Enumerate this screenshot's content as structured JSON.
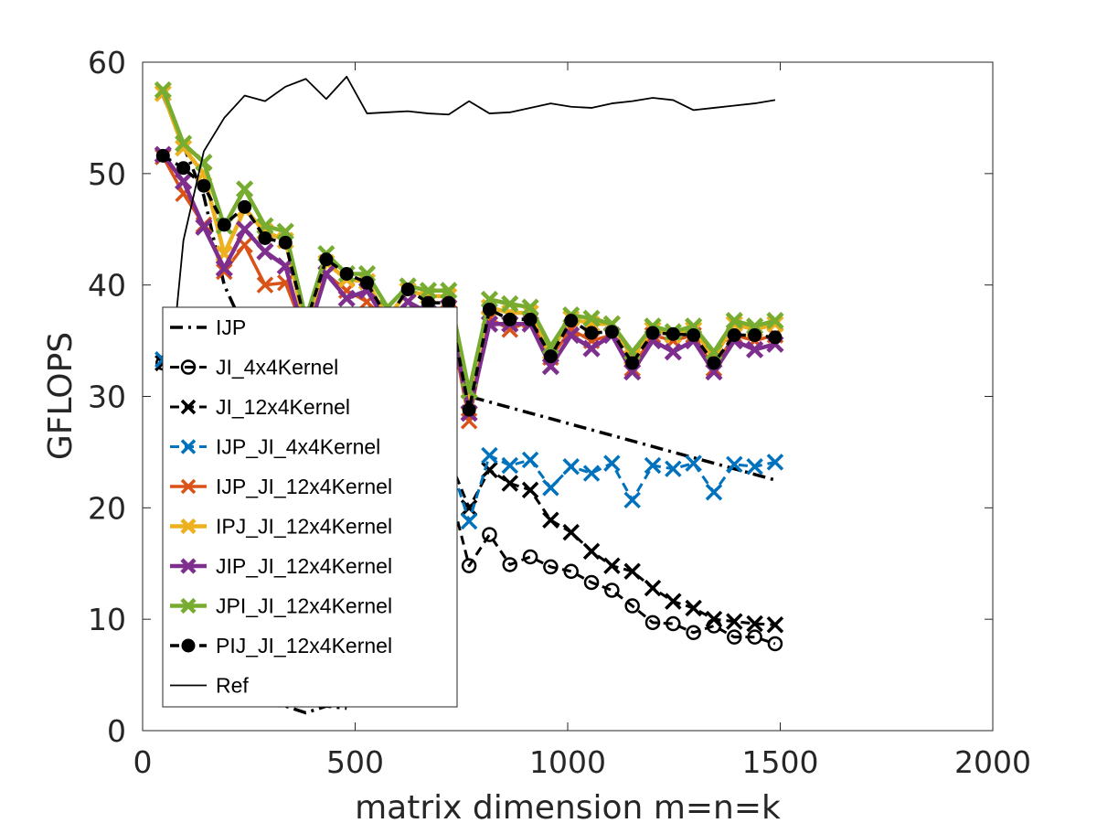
{
  "chart_data": {
    "type": "line",
    "title": "",
    "xlabel": "matrix dimension m=n=k",
    "ylabel": "GFLOPS",
    "xlim": [
      0,
      2000
    ],
    "ylim": [
      0,
      60
    ],
    "xticks": [
      "0",
      "500",
      "1000",
      "1500",
      "2000"
    ],
    "yticks": [
      "0",
      "10",
      "20",
      "30",
      "40",
      "50",
      "60"
    ],
    "grid": false,
    "legend_position": "center-left",
    "x": [
      48,
      96,
      144,
      192,
      240,
      288,
      336,
      384,
      432,
      480,
      528,
      576,
      624,
      672,
      720,
      768,
      816,
      864,
      912,
      960,
      1008,
      1056,
      1104,
      1152,
      1200,
      1248,
      1296,
      1344,
      1392,
      1440,
      1488
    ],
    "series": [
      {
        "name": "IJP",
        "color": "#000000",
        "dash": "14,6,3,6",
        "width": 3.5,
        "marker": "none",
        "values": [
          57.0,
          52.5,
          48.0,
          40.0,
          36.0,
          34.0,
          33.0,
          33.0,
          33.0,
          33.5,
          34.0,
          34.5,
          35.0,
          35.0,
          35.0,
          30.0,
          29.5,
          29.0,
          28.5,
          28.0,
          27.5,
          27.0,
          26.5,
          26.0,
          25.5,
          25.0,
          24.5,
          24.0,
          23.5,
          23.0,
          22.5
        ]
      },
      {
        "name": "JI_4x4Kernel",
        "color": "#000000",
        "dash": "10,6",
        "width": 3,
        "marker": "circle",
        "values": [
          33.0,
          31.5,
          31.0,
          30.5,
          30.0,
          29.5,
          29.0,
          28.5,
          28.0,
          27.0,
          26.0,
          25.0,
          24.0,
          23.0,
          22.0,
          14.8,
          17.6,
          14.9,
          15.6,
          14.7,
          14.3,
          13.3,
          12.6,
          11.2,
          9.7,
          9.6,
          8.8,
          9.4,
          8.4,
          8.4,
          7.8
        ]
      },
      {
        "name": "JI_12x4Kernel",
        "color": "#000000",
        "dash": "10,6",
        "width": 3,
        "marker": "x",
        "values": [
          33.0,
          32.0,
          31.5,
          31.0,
          30.5,
          30.0,
          29.5,
          29.0,
          28.5,
          28.0,
          27.5,
          27.0,
          26.5,
          25.5,
          24.5,
          20.0,
          23.4,
          22.2,
          21.6,
          18.9,
          17.8,
          16.1,
          14.8,
          14.3,
          12.8,
          11.6,
          11.0,
          10.0,
          9.8,
          9.6,
          9.5
        ]
      },
      {
        "name": "IJP_JI_4x4Kernel",
        "color": "#0072BD",
        "dash": "10,6",
        "width": 3,
        "marker": "x",
        "values": [
          33.3,
          32.0,
          31.5,
          31.0,
          30.5,
          30.0,
          29.5,
          29.0,
          28.5,
          28.0,
          27.5,
          27.0,
          26.5,
          25.5,
          24.5,
          18.8,
          24.7,
          23.8,
          24.3,
          21.8,
          23.7,
          23.1,
          24.0,
          20.7,
          23.8,
          23.5,
          24.0,
          21.4,
          23.9,
          23.7,
          24.1
        ]
      },
      {
        "name": "IJP_JI_12x4Kernel",
        "color": "#D95319",
        "dash": "none",
        "width": 3.5,
        "marker": "x",
        "values": [
          51.5,
          48.2,
          45.4,
          41.2,
          43.6,
          40.0,
          40.2,
          35.5,
          41.0,
          39.5,
          38.5,
          36.0,
          38.5,
          37.0,
          37.5,
          27.8,
          37.0,
          36.0,
          36.8,
          33.5,
          36.0,
          35.0,
          35.5,
          32.5,
          35.5,
          35.0,
          35.5,
          32.5,
          35.5,
          35.0,
          35.5
        ]
      },
      {
        "name": "IPJ_JI_12x4Kernel",
        "color": "#EDB120",
        "dash": "none",
        "width": 4.5,
        "marker": "x",
        "values": [
          57.2,
          52.3,
          50.0,
          42.8,
          46.8,
          44.8,
          44.0,
          36.0,
          42.0,
          40.5,
          40.3,
          37.0,
          39.5,
          39.0,
          39.0,
          29.5,
          38.0,
          37.5,
          37.5,
          34.0,
          37.0,
          36.5,
          36.5,
          33.5,
          36.0,
          35.5,
          36.0,
          33.5,
          36.5,
          36.0,
          36.5
        ]
      },
      {
        "name": "JIP_JI_12x4Kernel",
        "color": "#7E2F8E",
        "dash": "none",
        "width": 4.5,
        "marker": "x",
        "values": [
          51.7,
          49.3,
          45.2,
          41.5,
          45.0,
          43.0,
          41.7,
          35.0,
          41.0,
          38.8,
          39.5,
          36.5,
          38.5,
          37.5,
          38.0,
          28.5,
          36.5,
          36.5,
          36.5,
          32.7,
          35.5,
          34.3,
          35.5,
          32.2,
          35.0,
          34.0,
          35.0,
          32.2,
          35.0,
          34.2,
          34.7
        ]
      },
      {
        "name": "JPI_JI_12x4Kernel",
        "color": "#77AC30",
        "dash": "none",
        "width": 4.5,
        "marker": "x",
        "values": [
          57.5,
          52.7,
          51.0,
          45.3,
          48.6,
          45.3,
          44.8,
          37.0,
          42.8,
          41.0,
          41.0,
          38.0,
          39.9,
          39.5,
          39.5,
          30.5,
          38.7,
          38.3,
          38.0,
          34.5,
          37.3,
          37.0,
          36.5,
          34.0,
          36.3,
          35.8,
          36.3,
          34.0,
          36.8,
          36.3,
          36.8
        ]
      },
      {
        "name": "PIJ_JI_12x4Kernel",
        "color": "#000000",
        "dash": "10,6",
        "width": 3.5,
        "marker": "dot",
        "values": [
          51.6,
          50.5,
          48.9,
          45.4,
          47.0,
          44.2,
          43.8,
          36.5,
          42.3,
          41.0,
          40.2,
          37.0,
          39.6,
          38.4,
          38.4,
          28.8,
          37.8,
          36.9,
          36.9,
          33.6,
          36.8,
          35.7,
          35.8,
          33.0,
          35.7,
          35.6,
          35.5,
          33.0,
          35.5,
          35.5,
          35.3
        ]
      },
      {
        "name": "Ref",
        "color": "#000000",
        "dash": "none",
        "width": 1.8,
        "marker": "none",
        "values": [
          25.0,
          44.0,
          52.0,
          55.0,
          57.0,
          56.5,
          57.8,
          58.5,
          56.7,
          58.7,
          55.4,
          55.5,
          55.6,
          55.4,
          55.3,
          56.5,
          55.4,
          55.5,
          55.9,
          56.3,
          56.0,
          55.9,
          56.3,
          56.5,
          56.8,
          56.6,
          55.7,
          55.9,
          56.1,
          56.3,
          56.6
        ]
      }
    ],
    "ijp_lower_segment": {
      "x": [
        48,
        96,
        144,
        192,
        240,
        288,
        336,
        384,
        432,
        480
      ],
      "values": [
        3.0,
        3.2,
        2.9,
        2.4,
        2.5,
        2.3,
        2.2,
        1.6,
        2.2,
        2.0
      ]
    }
  }
}
